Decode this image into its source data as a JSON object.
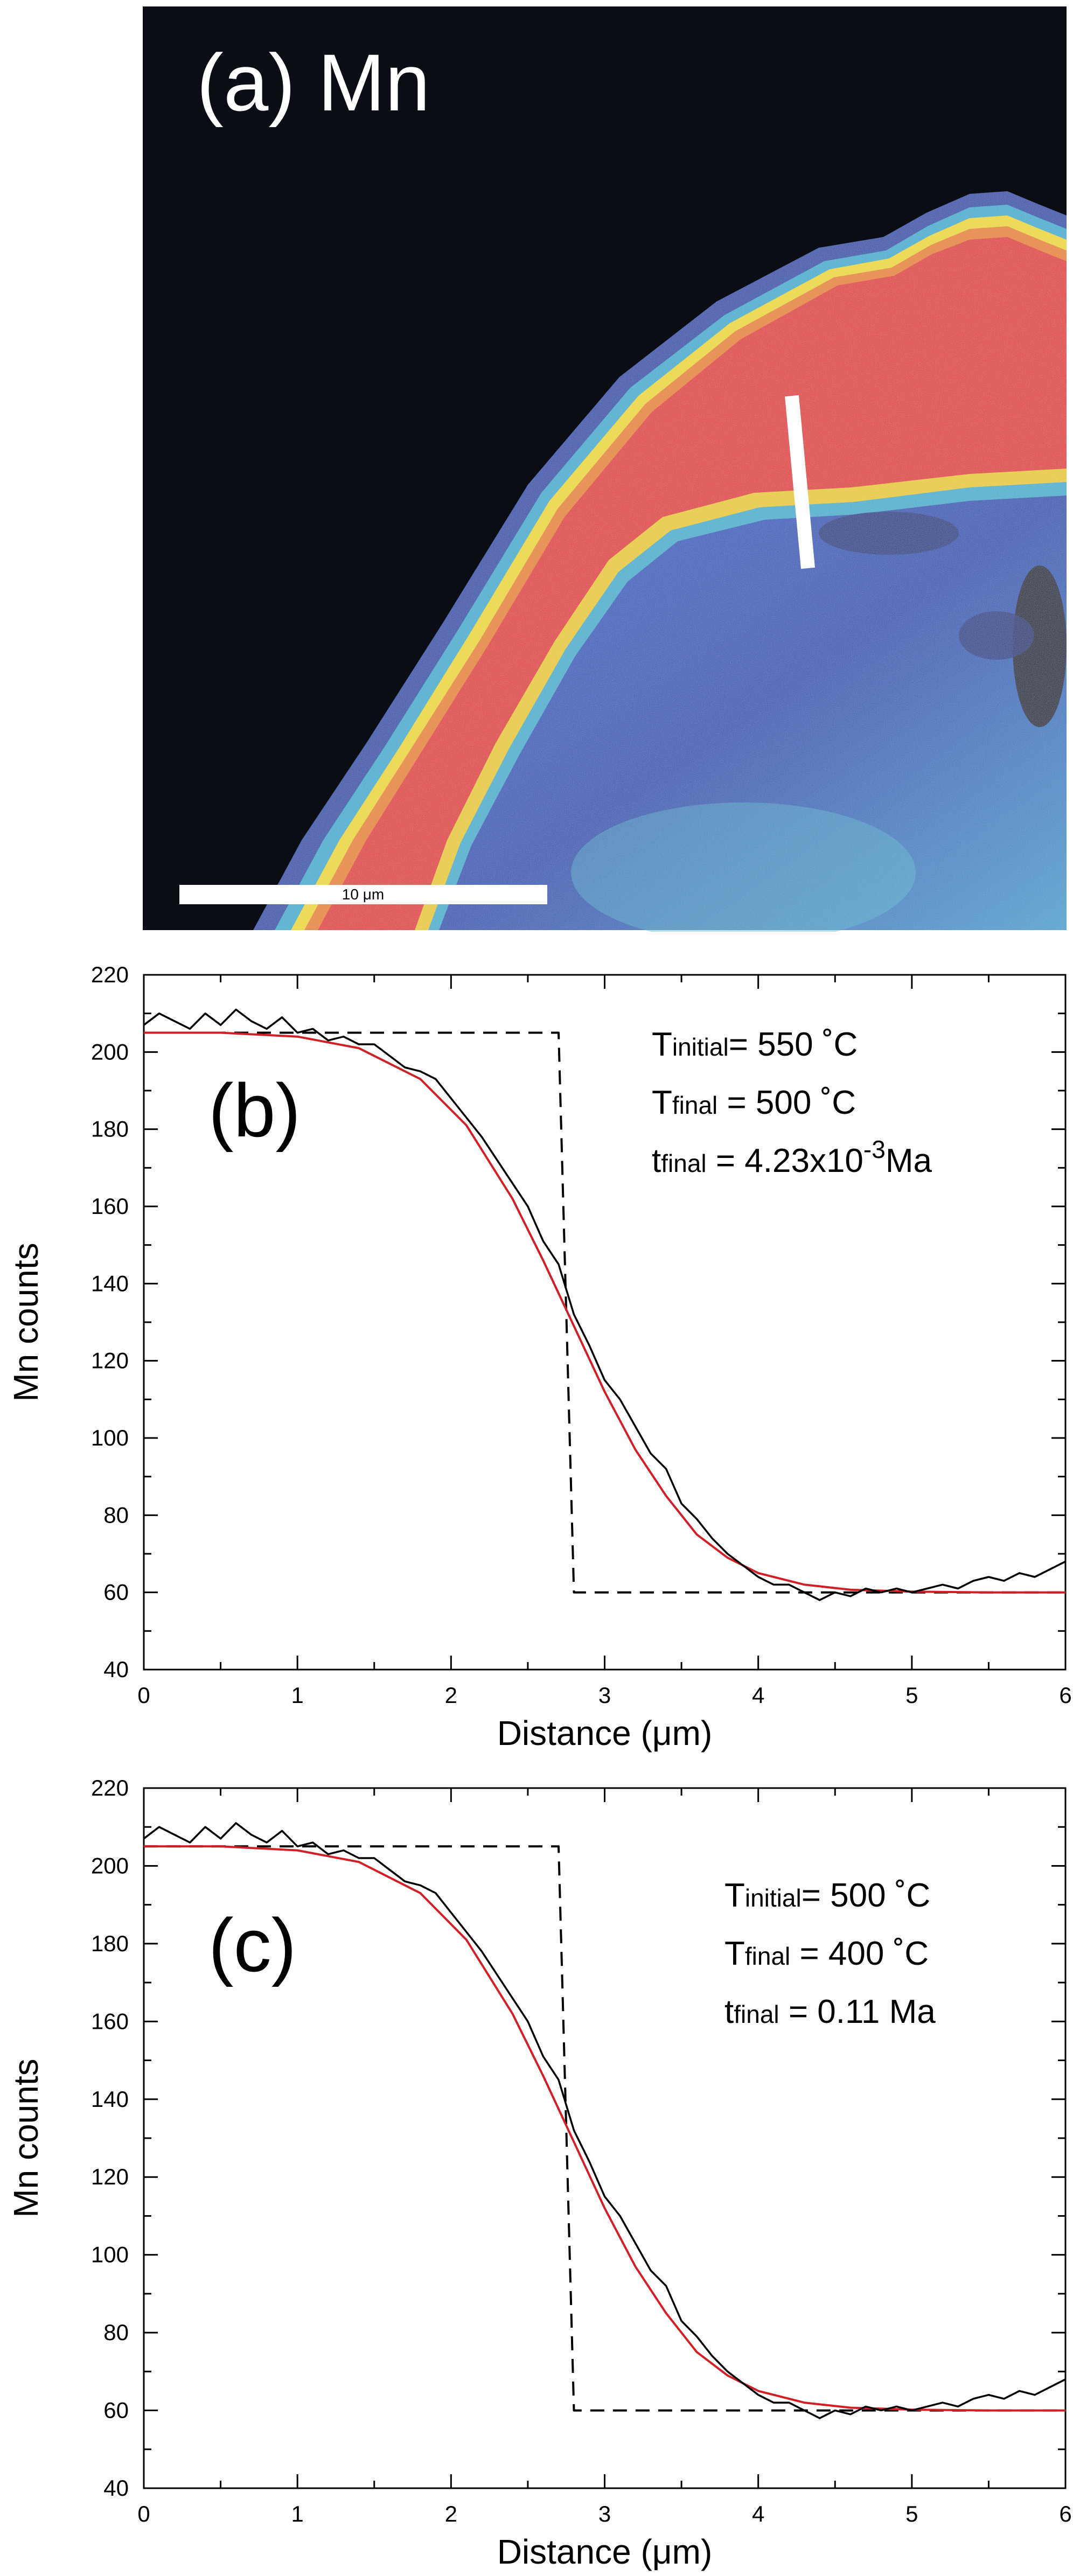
{
  "panel_a": {
    "title": "(a) Mn",
    "scalebar_label": "10 μm",
    "colors": {
      "background": "#0a0e14",
      "low": "#2a4fb0",
      "mid": "#3fb4d8",
      "high": "#e83a3a",
      "edge": "#f5e02a",
      "transect": "#ffffff"
    }
  },
  "chart_data": [
    {
      "id": "b",
      "type": "line",
      "panel_label": "(b)",
      "xlabel": "Distance (μm)",
      "ylabel": "Mn counts",
      "xlim": [
        0,
        6
      ],
      "ylim": [
        40,
        220
      ],
      "xticks": [
        "0",
        "1",
        "2",
        "3",
        "4",
        "5",
        "6"
      ],
      "yticks": [
        "40",
        "60",
        "80",
        "100",
        "120",
        "140",
        "160",
        "180",
        "200",
        "220"
      ],
      "annotations": [
        {
          "main": "T",
          "sub": "initial",
          "rest": "= 550 ˚C"
        },
        {
          "main": "T",
          "sub": "final",
          "rest": " = 500 ˚C"
        },
        {
          "main": "t",
          "sub": "final",
          "rest": " = 4.23x10",
          "sup": "-3",
          "tail": "Ma"
        }
      ],
      "series": [
        {
          "style": "dashed-black",
          "x": [
            0,
            2.7,
            2.7,
            2.8,
            2.8,
            6
          ],
          "y": [
            205,
            205,
            205,
            60,
            60,
            60
          ]
        },
        {
          "style": "red-model",
          "x": [
            0,
            0.5,
            1.0,
            1.4,
            1.8,
            2.1,
            2.4,
            2.6,
            2.8,
            3.0,
            3.2,
            3.4,
            3.6,
            3.8,
            4.0,
            4.3,
            4.6,
            5.0,
            5.5,
            6.0
          ],
          "y": [
            205,
            205,
            204,
            201,
            193,
            181,
            162,
            146,
            129,
            112,
            97,
            85,
            75,
            69,
            65,
            62,
            60.7,
            60.2,
            60,
            60
          ]
        },
        {
          "style": "black-data",
          "x": [
            0,
            0.1,
            0.2,
            0.3,
            0.4,
            0.5,
            0.6,
            0.7,
            0.8,
            0.9,
            1.0,
            1.1,
            1.2,
            1.3,
            1.4,
            1.5,
            1.6,
            1.7,
            1.8,
            1.9,
            2.0,
            2.1,
            2.2,
            2.3,
            2.4,
            2.5,
            2.6,
            2.7,
            2.8,
            2.9,
            3.0,
            3.1,
            3.2,
            3.3,
            3.4,
            3.5,
            3.6,
            3.7,
            3.8,
            3.9,
            4.0,
            4.1,
            4.2,
            4.3,
            4.4,
            4.5,
            4.6,
            4.7,
            4.8,
            4.9,
            5.0,
            5.1,
            5.2,
            5.3,
            5.4,
            5.5,
            5.6,
            5.7,
            5.8,
            5.9,
            6.0
          ],
          "y": [
            207,
            210,
            208,
            206,
            210,
            207,
            211,
            208,
            206,
            209,
            205,
            206,
            203,
            204,
            202,
            202,
            199,
            196,
            195,
            193,
            188,
            183,
            178,
            172,
            166,
            160,
            151,
            145,
            132,
            124,
            115,
            110,
            103,
            96,
            92,
            83,
            79,
            74,
            70,
            67,
            64,
            62,
            62,
            60,
            58,
            60,
            59,
            61,
            60,
            61,
            60,
            61,
            62,
            61,
            63,
            64,
            63,
            65,
            64,
            66,
            68
          ]
        }
      ]
    },
    {
      "id": "c",
      "type": "line",
      "panel_label": "(c)",
      "xlabel": "Distance (μm)",
      "ylabel": "Mn counts",
      "xlim": [
        0,
        6
      ],
      "ylim": [
        40,
        220
      ],
      "xticks": [
        "0",
        "1",
        "2",
        "3",
        "4",
        "5",
        "6"
      ],
      "yticks": [
        "40",
        "60",
        "80",
        "100",
        "120",
        "140",
        "160",
        "180",
        "200",
        "220"
      ],
      "annotations": [
        {
          "main": "T",
          "sub": "initial",
          "rest": "= 500 ˚C"
        },
        {
          "main": "T",
          "sub": "final",
          "rest": " = 400 ˚C"
        },
        {
          "main": "t",
          "sub": "final",
          "rest": " = 0.11 Ma"
        }
      ],
      "series": [
        {
          "style": "dashed-black",
          "x": [
            0,
            2.7,
            2.7,
            2.8,
            2.8,
            6
          ],
          "y": [
            205,
            205,
            205,
            60,
            60,
            60
          ]
        },
        {
          "style": "red-model",
          "x": [
            0,
            0.5,
            1.0,
            1.4,
            1.8,
            2.1,
            2.4,
            2.6,
            2.8,
            3.0,
            3.2,
            3.4,
            3.6,
            3.8,
            4.0,
            4.3,
            4.6,
            5.0,
            5.5,
            6.0
          ],
          "y": [
            205,
            205,
            204,
            201,
            193,
            181,
            162,
            146,
            129,
            112,
            97,
            85,
            75,
            69,
            65,
            62,
            60.7,
            60.2,
            60,
            60
          ]
        },
        {
          "style": "black-data",
          "x": [
            0,
            0.1,
            0.2,
            0.3,
            0.4,
            0.5,
            0.6,
            0.7,
            0.8,
            0.9,
            1.0,
            1.1,
            1.2,
            1.3,
            1.4,
            1.5,
            1.6,
            1.7,
            1.8,
            1.9,
            2.0,
            2.1,
            2.2,
            2.3,
            2.4,
            2.5,
            2.6,
            2.7,
            2.8,
            2.9,
            3.0,
            3.1,
            3.2,
            3.3,
            3.4,
            3.5,
            3.6,
            3.7,
            3.8,
            3.9,
            4.0,
            4.1,
            4.2,
            4.3,
            4.4,
            4.5,
            4.6,
            4.7,
            4.8,
            4.9,
            5.0,
            5.1,
            5.2,
            5.3,
            5.4,
            5.5,
            5.6,
            5.7,
            5.8,
            5.9,
            6.0
          ],
          "y": [
            207,
            210,
            208,
            206,
            210,
            207,
            211,
            208,
            206,
            209,
            205,
            206,
            203,
            204,
            202,
            202,
            199,
            196,
            195,
            193,
            188,
            183,
            178,
            172,
            166,
            160,
            151,
            145,
            132,
            124,
            115,
            110,
            103,
            96,
            92,
            83,
            79,
            74,
            70,
            67,
            64,
            62,
            62,
            60,
            58,
            60,
            59,
            61,
            60,
            61,
            60,
            61,
            62,
            61,
            63,
            64,
            63,
            65,
            64,
            66,
            68
          ]
        }
      ]
    }
  ]
}
